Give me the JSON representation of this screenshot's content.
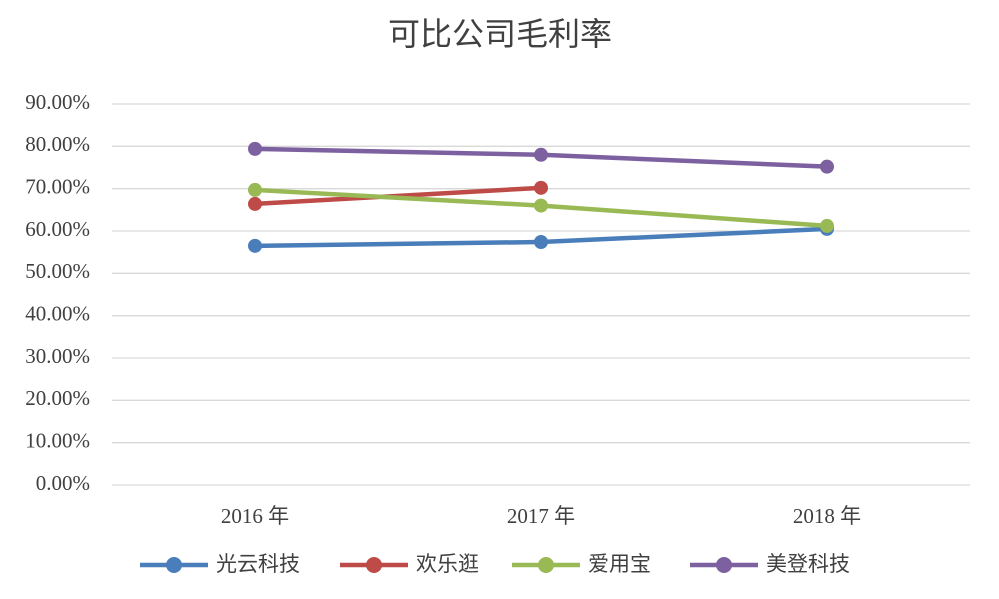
{
  "chart_data": {
    "type": "line",
    "title": "可比公司毛利率",
    "categories": [
      "2016 年",
      "2017 年",
      "2018 年"
    ],
    "series": [
      {
        "name": "光云科技",
        "color": "#4a7ebb",
        "values": [
          56.5,
          57.4,
          60.5
        ]
      },
      {
        "name": "欢乐逛",
        "color": "#be4b48",
        "values": [
          66.4,
          70.2,
          null
        ]
      },
      {
        "name": "爱用宝",
        "color": "#98b954",
        "values": [
          69.7,
          66,
          61.2
        ]
      },
      {
        "name": "美登科技",
        "color": "#7d60a0",
        "values": [
          79.4,
          78,
          75.2
        ]
      }
    ],
    "ylim": [
      0,
      90
    ],
    "yticks": [
      {
        "value": 0,
        "label": "0.00%"
      },
      {
        "value": 10,
        "label": "10.00%"
      },
      {
        "value": 20,
        "label": "20.00%"
      },
      {
        "value": 30,
        "label": "30.00%"
      },
      {
        "value": 40,
        "label": "40.00%"
      },
      {
        "value": 50,
        "label": "50.00%"
      },
      {
        "value": 60,
        "label": "60.00%"
      },
      {
        "value": 70,
        "label": "70.00%"
      },
      {
        "value": 80,
        "label": "80.00%"
      },
      {
        "value": 90,
        "label": "90.00%"
      }
    ],
    "grid": true,
    "legend": "bottom"
  }
}
